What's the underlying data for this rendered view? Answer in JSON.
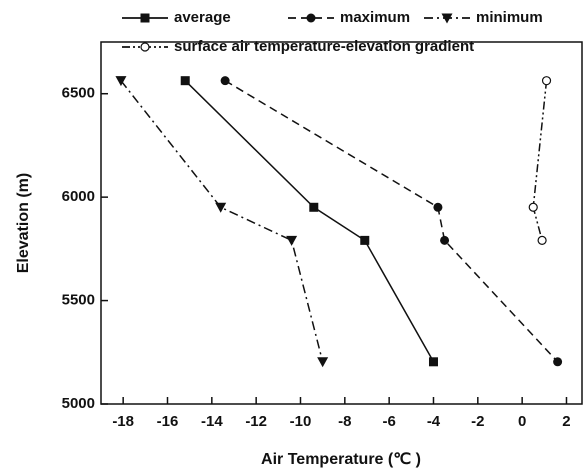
{
  "chart_data": {
    "type": "line",
    "x_label": "Air Temperature (℃ )",
    "y_label": "Elevation (m)",
    "xlim": [
      -19,
      2.7
    ],
    "ylim": [
      5000,
      6750
    ],
    "xticks": [
      -18,
      -16,
      -14,
      -12,
      -10,
      -8,
      -6,
      -4,
      -2,
      0,
      2
    ],
    "yticks": [
      5000,
      5500,
      6000,
      6500
    ],
    "series": [
      {
        "name": "average",
        "color": "#111111",
        "marker": "square",
        "dash": "solid",
        "x": [
          -15.2,
          -9.4,
          -7.1,
          -4.0
        ],
        "values": [
          6563,
          5951,
          5791,
          5204
        ]
      },
      {
        "name": "maximum",
        "color": "#111111",
        "marker": "circle",
        "dash": "dash",
        "x": [
          -13.4,
          -3.8,
          -3.5,
          1.6
        ],
        "values": [
          6563,
          5951,
          5791,
          5204
        ]
      },
      {
        "name": "minimum",
        "color": "#111111",
        "marker": "triangle-down",
        "dash": "dashdot",
        "x": [
          -18.1,
          -13.6,
          -10.4,
          -9.0
        ],
        "values": [
          6563,
          5951,
          5791,
          5204
        ]
      },
      {
        "name": "surface air temperature-elevation gradient",
        "color": "#111111",
        "marker": "open-circle",
        "dash": "dashdotdot",
        "x": [
          1.1,
          0.5,
          0.9
        ],
        "values": [
          6563,
          5951,
          5791
        ]
      }
    ]
  }
}
